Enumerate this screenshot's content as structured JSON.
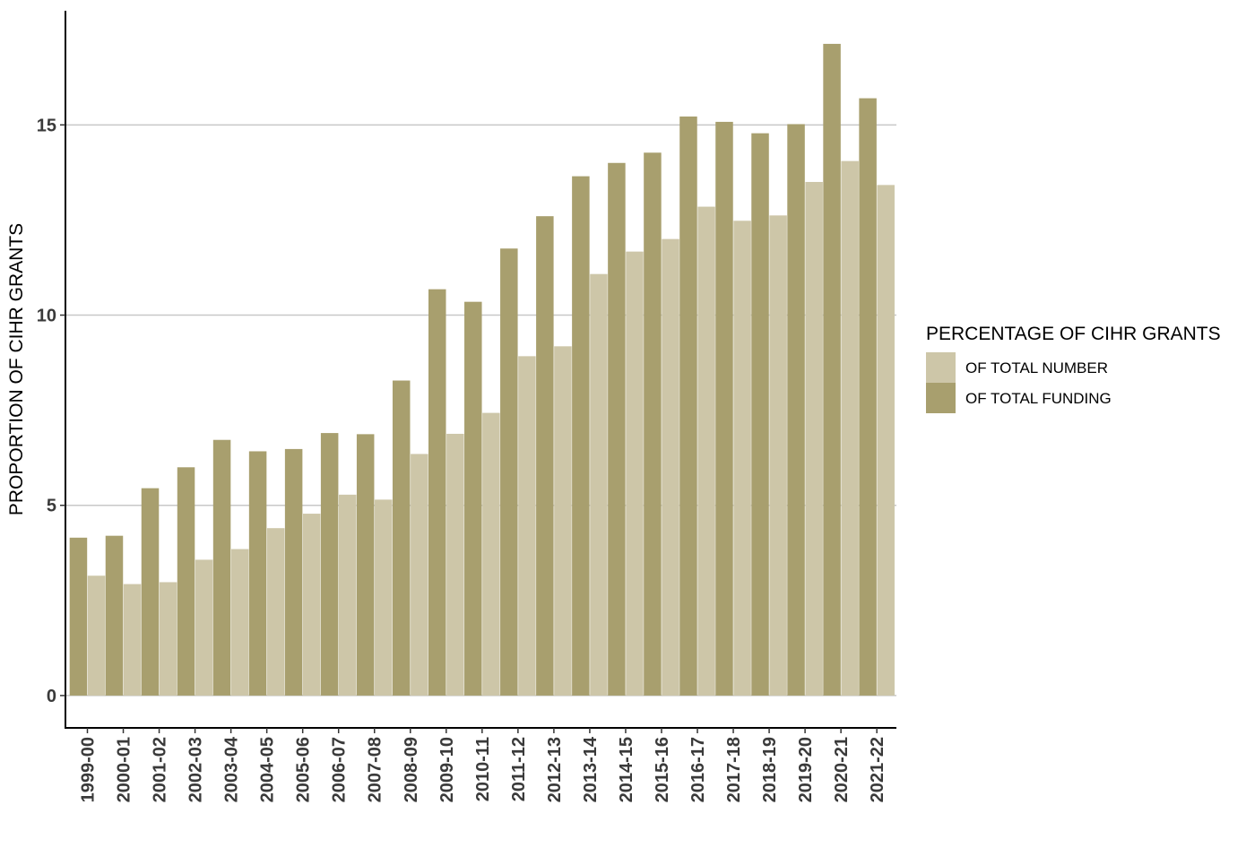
{
  "chart_data": {
    "type": "bar",
    "ylabel": "PROPORTION OF CIHR GRANTS",
    "xlabel": "",
    "ylim": [
      -0.85,
      18.0
    ],
    "yticks": [
      0,
      5,
      10,
      15
    ],
    "ytick_labels": [
      "0",
      "5",
      "10",
      "15"
    ],
    "grid": "horizontal major",
    "legend_position": "right",
    "legend_title": "PERCENTAGE OF CIHR GRANTS",
    "categories": [
      "1999-00",
      "2000-01",
      "2001-02",
      "2002-03",
      "2003-04",
      "2004-05",
      "2005-06",
      "2006-07",
      "2007-08",
      "2008-09",
      "2009-10",
      "2010-11",
      "2011-12",
      "2012-13",
      "2013-14",
      "2014-15",
      "2015-16",
      "2016-17",
      "2017-18",
      "2018-19",
      "2019-20",
      "2020-21",
      "2021-22"
    ],
    "series": [
      {
        "name": "OF TOTAL FUNDING",
        "color": "#a89f6e",
        "values": [
          4.15,
          4.2,
          5.45,
          6.0,
          6.72,
          6.42,
          6.48,
          6.9,
          6.87,
          8.28,
          10.68,
          10.35,
          11.75,
          12.6,
          13.65,
          14.0,
          14.27,
          15.22,
          15.08,
          14.78,
          15.02,
          17.13,
          15.7
        ]
      },
      {
        "name": "OF TOTAL NUMBER",
        "color": "#cdc6a8",
        "values": [
          3.15,
          2.93,
          2.98,
          3.57,
          3.85,
          4.4,
          4.78,
          5.28,
          5.15,
          6.35,
          6.88,
          7.43,
          8.92,
          9.18,
          11.08,
          11.67,
          12.0,
          12.85,
          12.48,
          12.62,
          13.5,
          14.05,
          13.42
        ]
      }
    ],
    "legend_items": [
      {
        "label": "OF TOTAL NUMBER",
        "color": "#cdc6a8"
      },
      {
        "label": "OF TOTAL FUNDING",
        "color": "#a89f6e"
      }
    ]
  }
}
